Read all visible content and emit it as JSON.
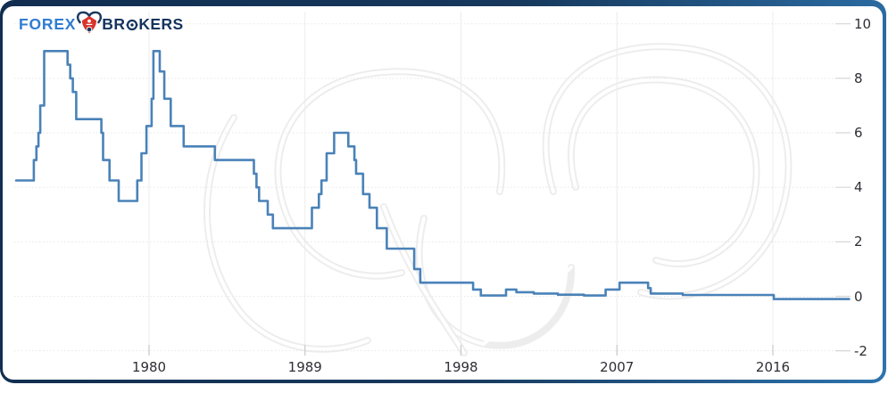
{
  "brand": {
    "name": "FOREX BROKERS",
    "part_forex": "FOREX",
    "part_br": "BR",
    "part_kers": "KERS",
    "colors": {
      "forex_text": "#2f7dd2",
      "brokers_text": "#15345e",
      "bull_red": "#d9342b",
      "bull_navy": "#1b3a5f"
    }
  },
  "frame": {
    "border_dark": "#112d4f",
    "border_bright": "#2e74ae",
    "card_background": "#ffffff"
  },
  "chart_data": {
    "type": "line",
    "line_style": "step",
    "title": "",
    "xlabel": "",
    "ylabel": "",
    "legend": "none",
    "grid": {
      "horizontal": "dotted",
      "vertical": "solid"
    },
    "x_ticks": [
      1980,
      1989,
      1998,
      2007,
      2016
    ],
    "y_ticks": [
      10,
      8,
      6,
      4,
      2,
      0,
      -2
    ],
    "x_range": [
      1972.3,
      2020.5
    ],
    "y_range": [
      -2,
      10
    ],
    "series": [
      {
        "color": "#4a82b8",
        "points": [
          [
            1972.33,
            4.25
          ],
          [
            1973.35,
            5.0
          ],
          [
            1973.5,
            5.5
          ],
          [
            1973.62,
            6.0
          ],
          [
            1973.72,
            7.0
          ],
          [
            1973.95,
            9.0
          ],
          [
            1975.3,
            8.5
          ],
          [
            1975.45,
            8.0
          ],
          [
            1975.6,
            7.5
          ],
          [
            1975.8,
            6.5
          ],
          [
            1977.25,
            6.0
          ],
          [
            1977.35,
            5.0
          ],
          [
            1977.72,
            4.25
          ],
          [
            1978.25,
            3.5
          ],
          [
            1979.32,
            4.25
          ],
          [
            1979.56,
            5.25
          ],
          [
            1979.85,
            6.25
          ],
          [
            1980.15,
            7.25
          ],
          [
            1980.25,
            9.0
          ],
          [
            1980.62,
            8.25
          ],
          [
            1980.88,
            7.25
          ],
          [
            1981.25,
            6.25
          ],
          [
            1982.0,
            5.5
          ],
          [
            1983.8,
            5.0
          ],
          [
            1986.05,
            4.5
          ],
          [
            1986.2,
            4.0
          ],
          [
            1986.35,
            3.5
          ],
          [
            1986.85,
            3.0
          ],
          [
            1987.15,
            2.5
          ],
          [
            1989.4,
            3.25
          ],
          [
            1989.8,
            3.75
          ],
          [
            1989.95,
            4.25
          ],
          [
            1990.25,
            5.25
          ],
          [
            1990.68,
            6.0
          ],
          [
            1991.5,
            5.5
          ],
          [
            1991.85,
            5.0
          ],
          [
            1991.95,
            4.5
          ],
          [
            1992.35,
            3.75
          ],
          [
            1992.72,
            3.25
          ],
          [
            1993.15,
            2.5
          ],
          [
            1993.72,
            1.75
          ],
          [
            1995.3,
            1.0
          ],
          [
            1995.65,
            0.5
          ],
          [
            1998.7,
            0.25
          ],
          [
            1999.15,
            0.03
          ],
          [
            2000.6,
            0.25
          ],
          [
            2001.2,
            0.15
          ],
          [
            2002.2,
            0.1
          ],
          [
            2003.6,
            0.06
          ],
          [
            2005.1,
            0.03
          ],
          [
            2006.35,
            0.25
          ],
          [
            2007.15,
            0.5
          ],
          [
            2008.8,
            0.3
          ],
          [
            2008.95,
            0.1
          ],
          [
            2010.8,
            0.05
          ],
          [
            2016.05,
            -0.1
          ],
          [
            2020.4,
            -0.1
          ]
        ]
      }
    ]
  }
}
